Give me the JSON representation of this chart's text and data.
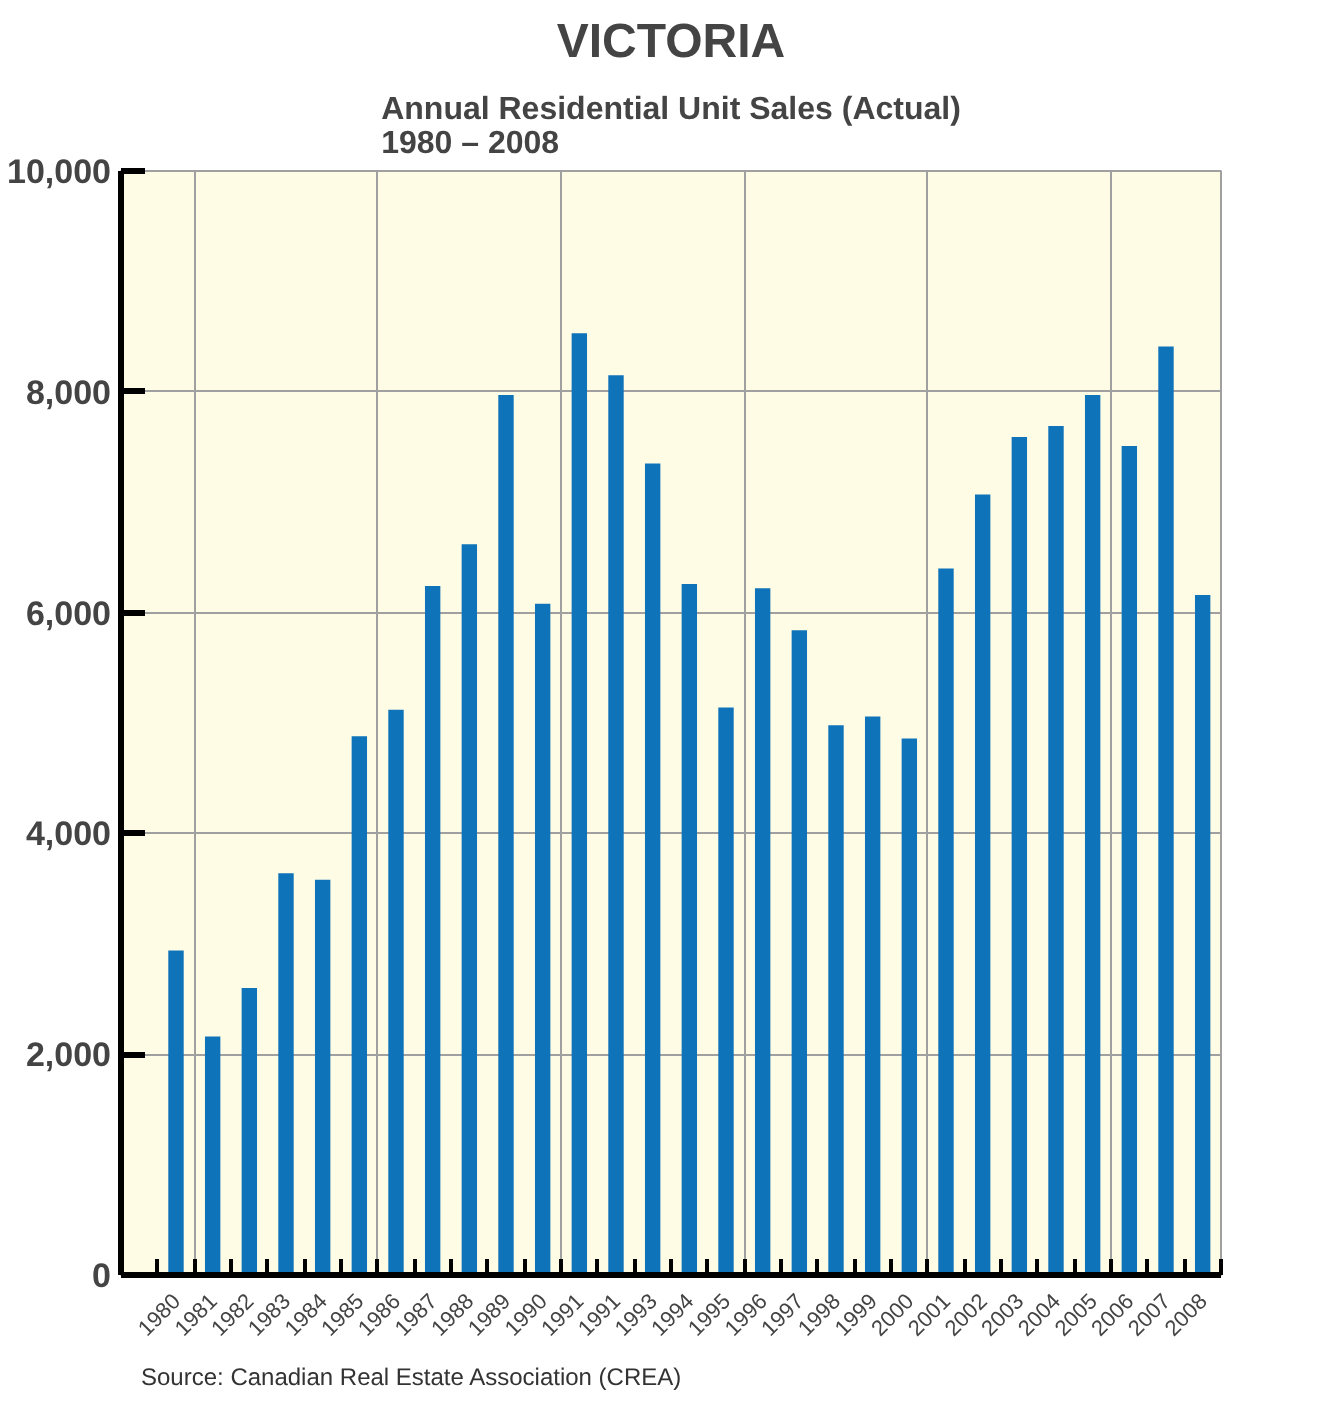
{
  "chart_data": {
    "type": "bar",
    "title": "VICTORIA",
    "subtitle": "Annual Residential Unit Sales (Actual)\n1980 – 2008",
    "categories": [
      "1980",
      "1981",
      "1982",
      "1983",
      "1984",
      "1985",
      "1986",
      "1987",
      "1988",
      "1989",
      "1990",
      "1991",
      "1991",
      "1993",
      "1994",
      "1995",
      "1996",
      "1997",
      "1998",
      "1999",
      "2000",
      "2001",
      "2002",
      "2003",
      "2004",
      "2005",
      "2006",
      "2007",
      "2008"
    ],
    "values": [
      2940,
      2160,
      2600,
      3640,
      3580,
      4880,
      5120,
      6240,
      6620,
      7970,
      6080,
      8530,
      8150,
      7350,
      6260,
      5140,
      6220,
      5840,
      4980,
      5060,
      4860,
      6400,
      7070,
      7590,
      7690,
      7970,
      7510,
      8410,
      6160
    ],
    "color": "#0f73b9",
    "ylim": [
      0,
      10000
    ],
    "yticks": [
      {
        "value": 0,
        "label": "0"
      },
      {
        "value": 2000,
        "label": "2,000"
      },
      {
        "value": 4000,
        "label": "4,000"
      },
      {
        "value": 6000,
        "label": "6,000"
      },
      {
        "value": 8000,
        "label": "8,000"
      },
      {
        "value": 10000,
        "label": "10,000"
      }
    ],
    "grid": true,
    "annotations": [
      "Source: Canadian Real Estate Association (CREA)"
    ]
  }
}
